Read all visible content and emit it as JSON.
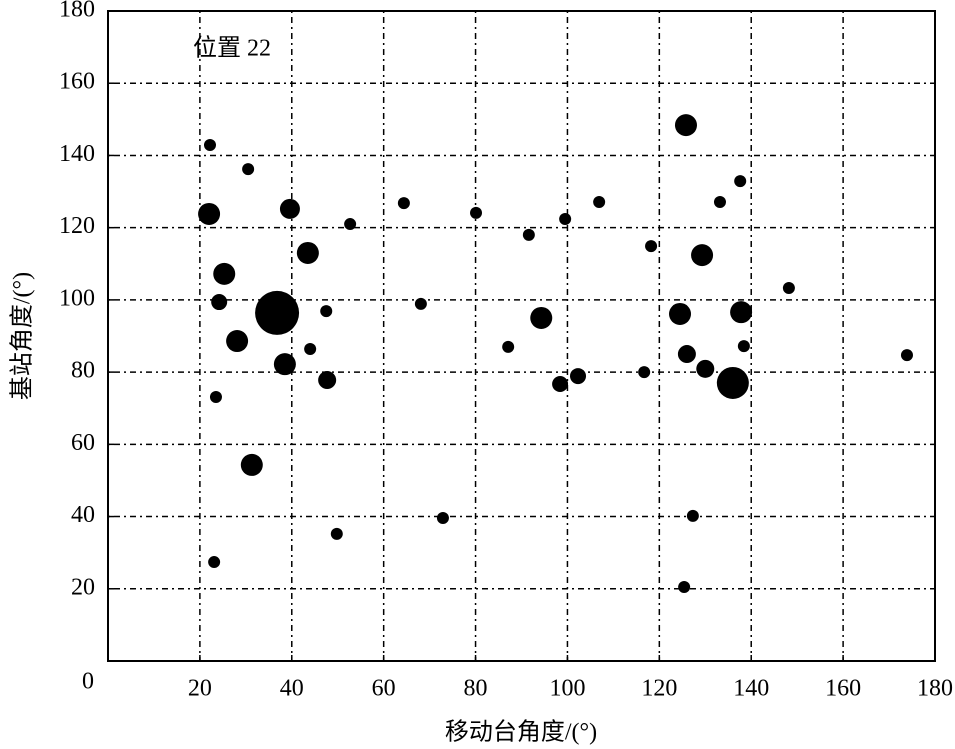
{
  "chart_data": {
    "type": "bubble",
    "xlabel": "移动台角度/(°)",
    "ylabel": "基站角度/(°)",
    "annotation": "位置 22",
    "color": "#000000",
    "grid": true,
    "xlim": [
      0,
      180
    ],
    "ylim": [
      0,
      180
    ],
    "xticks": [
      0,
      20,
      40,
      60,
      80,
      100,
      120,
      140,
      160,
      180
    ],
    "yticks": [
      20,
      40,
      60,
      80,
      100,
      120,
      140,
      160,
      180
    ],
    "x": [
      22.2,
      30.5,
      22.0,
      39.6,
      52.7,
      64.4,
      80.1,
      91.6,
      99.5,
      106.9,
      125.8,
      137.6,
      133.2,
      118.2,
      129.3,
      43.5,
      25.3,
      24.2,
      36.8,
      47.5,
      68.1,
      28.1,
      44.0,
      38.5,
      47.7,
      87.1,
      94.3,
      98.4,
      102.3,
      116.7,
      124.5,
      126.0,
      130.0,
      136.0,
      137.8,
      138.4,
      148.2,
      173.9,
      23.5,
      31.3,
      72.9,
      49.8,
      127.3,
      23.1,
      125.4
    ],
    "values": [
      142.9,
      136.2,
      123.8,
      125.2,
      121.0,
      126.8,
      124.1,
      118.0,
      122.4,
      127.1,
      148.4,
      132.9,
      127.1,
      114.9,
      112.4,
      113.0,
      107.2,
      99.4,
      96.4,
      96.9,
      98.9,
      88.6,
      86.4,
      82.2,
      77.8,
      87.0,
      95.0,
      76.7,
      78.9,
      80.0,
      96.1,
      85.0,
      80.9,
      77.0,
      96.6,
      87.2,
      103.3,
      84.7,
      73.1,
      54.3,
      39.6,
      35.2,
      40.2,
      27.4,
      20.5
    ],
    "sizes": [
      6,
      6,
      11,
      10,
      6,
      6,
      6,
      6,
      6,
      6,
      11,
      6,
      6,
      6,
      11,
      11,
      11,
      8,
      22,
      6,
      6,
      11,
      6,
      11,
      9,
      6,
      11,
      8,
      8,
      6,
      11,
      9,
      9,
      16,
      11,
      6,
      6,
      6,
      6,
      11,
      6,
      6,
      6,
      6,
      6
    ]
  }
}
